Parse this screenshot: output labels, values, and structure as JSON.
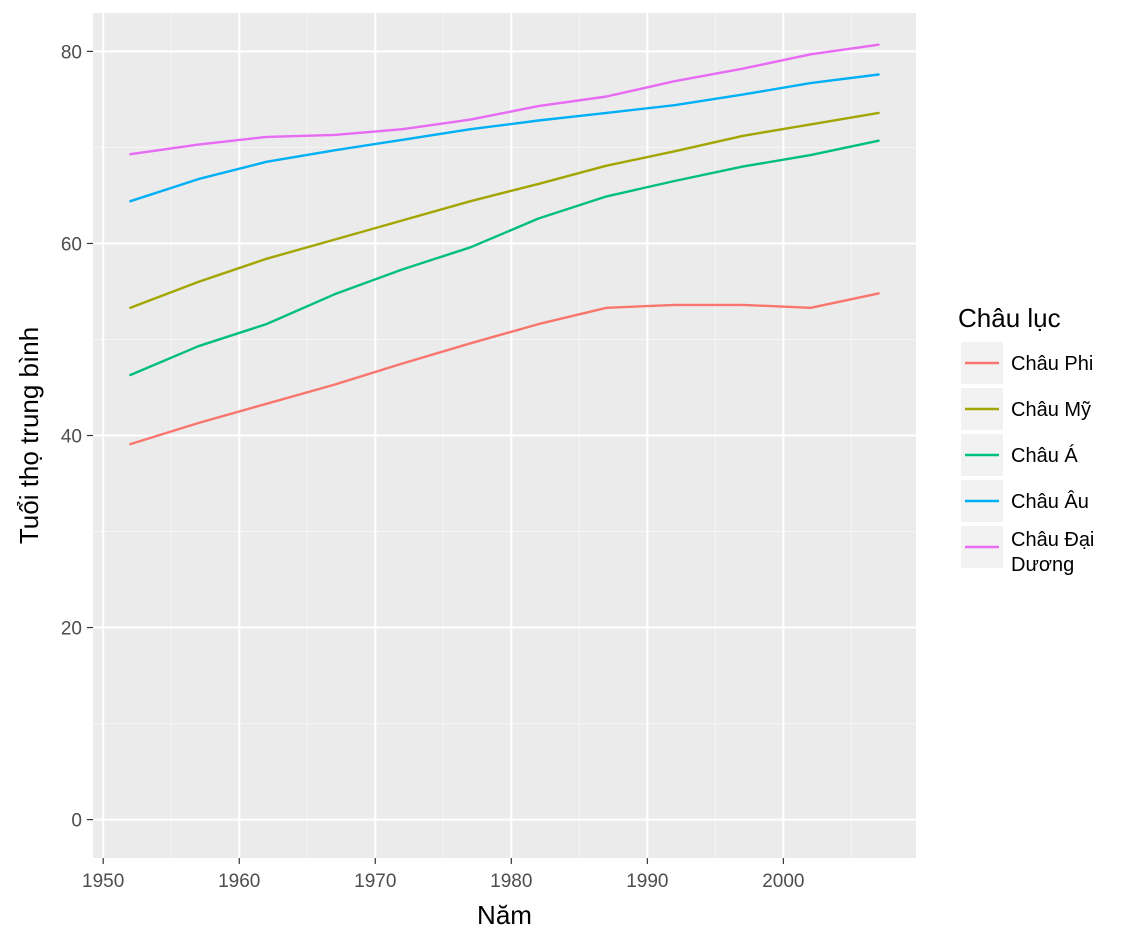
{
  "chart_data": {
    "type": "line",
    "title": "",
    "xlabel": "Năm",
    "ylabel": "Tuổi thọ trung bình",
    "xlim": [
      1949.25,
      2009.75
    ],
    "ylim": [
      -4,
      84
    ],
    "x_ticks": [
      1950,
      1960,
      1970,
      1980,
      1990,
      2000
    ],
    "y_ticks": [
      0,
      20,
      40,
      60,
      80
    ],
    "grid": true,
    "legend": {
      "title": "Châu lục",
      "position": "right"
    },
    "x": [
      1952,
      1957,
      1962,
      1967,
      1972,
      1977,
      1982,
      1987,
      1992,
      1997,
      2002,
      2007
    ],
    "series": [
      {
        "name": "Châu Phi",
        "color": "#F8766D",
        "values": [
          39.1,
          41.3,
          43.3,
          45.3,
          47.5,
          49.6,
          51.6,
          53.3,
          53.6,
          53.6,
          53.3,
          54.8
        ]
      },
      {
        "name": "Châu Mỹ",
        "color": "#A3A500",
        "values": [
          53.3,
          56.0,
          58.4,
          60.4,
          62.4,
          64.4,
          66.2,
          68.1,
          69.6,
          71.2,
          72.4,
          73.6
        ]
      },
      {
        "name": "Châu Á",
        "color": "#00BF7D",
        "values": [
          46.3,
          49.3,
          51.6,
          54.7,
          57.3,
          59.6,
          62.6,
          64.9,
          66.5,
          68.0,
          69.2,
          70.7
        ]
      },
      {
        "name": "Châu Âu",
        "color": "#00B0F6",
        "values": [
          64.4,
          66.7,
          68.5,
          69.7,
          70.8,
          71.9,
          72.8,
          73.6,
          74.4,
          75.5,
          76.7,
          77.6
        ]
      },
      {
        "name": "Châu Đại Dương",
        "color": "#E76BF3",
        "values": [
          69.3,
          70.3,
          71.1,
          71.3,
          71.9,
          72.9,
          74.3,
          75.3,
          76.9,
          78.2,
          79.7,
          80.7
        ]
      }
    ]
  }
}
